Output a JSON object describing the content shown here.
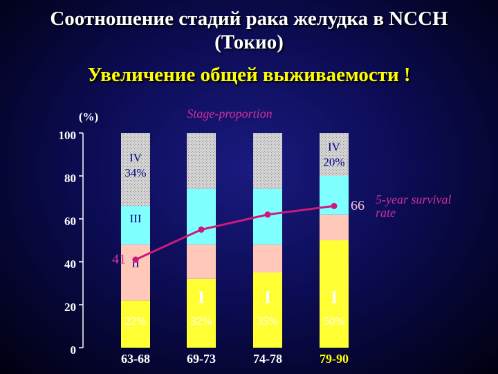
{
  "header": {
    "title": "Соотношение стадий рака желудка в NCCH (Токио)",
    "subtitle": "Увеличение общей выживаемости !"
  },
  "chart_data": {
    "type": "bar",
    "stacked": true,
    "title": "Stage-proportion",
    "y_label": "(%)",
    "categories": [
      "63-68",
      "69-73",
      "74-78",
      "79-90"
    ],
    "category_label_colors": [
      "#ffffff",
      "#ffffff",
      "#ffffff",
      "#ffff00"
    ],
    "ylim": [
      0,
      100
    ],
    "yticks": [
      0,
      20,
      40,
      60,
      80,
      100
    ],
    "series": [
      {
        "name": "I",
        "color": "#ffff33",
        "values": [
          22,
          32,
          35,
          50
        ],
        "value_labels": [
          "22%",
          "32%",
          "35%",
          "50%"
        ]
      },
      {
        "name": "II",
        "color": "#ffc8b8",
        "values": [
          26,
          16,
          13,
          12
        ]
      },
      {
        "name": "III",
        "color": "#80ffff",
        "values": [
          18,
          26,
          26,
          18
        ]
      },
      {
        "name": "IV",
        "color": "#c8c8c8",
        "values": [
          34,
          26,
          26,
          20
        ],
        "value_labels": [
          "34%",
          null,
          null,
          "20%"
        ]
      },
      {
        "name": "5-year survival rate",
        "type": "line",
        "color": "#cc1a7a",
        "values": [
          41,
          55,
          62,
          66
        ],
        "value_labels": [
          "41",
          null,
          null,
          "66"
        ]
      }
    ]
  }
}
